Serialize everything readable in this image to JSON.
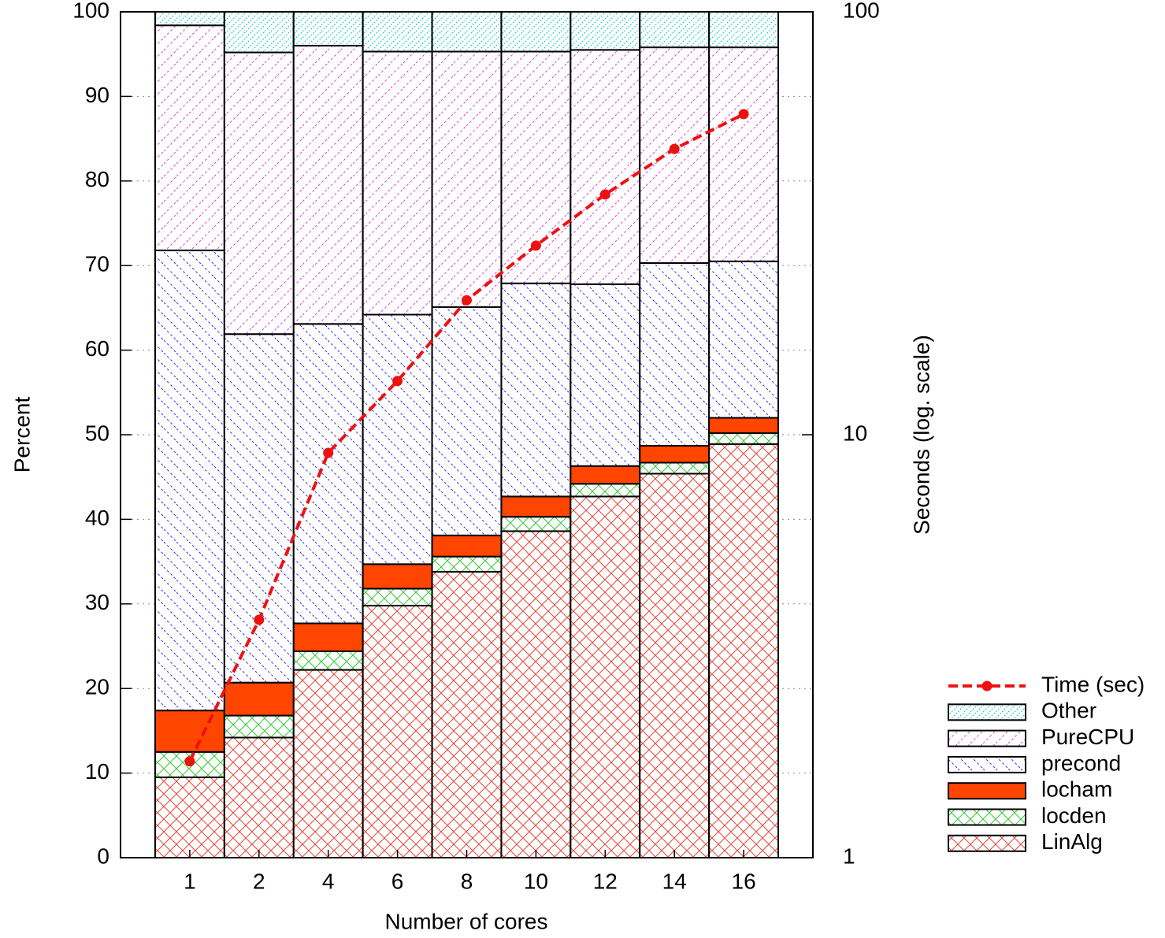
{
  "chart_data": {
    "type": "stacked-bar-line",
    "xlabel": "Number of cores",
    "ylabel": "Percent",
    "y2label": "Seconds (log. scale)",
    "categories": [
      "1",
      "2",
      "4",
      "6",
      "8",
      "10",
      "12",
      "14",
      "16"
    ],
    "ylim": [
      0,
      100
    ],
    "yticks": [
      0,
      10,
      20,
      30,
      40,
      50,
      60,
      70,
      80,
      90,
      100
    ],
    "y2lim": [
      1,
      100
    ],
    "y2ticks": [
      1,
      10,
      100
    ],
    "y2scale": "log",
    "grid": true,
    "legend": "lower right",
    "series": [
      {
        "name": "LinAlg",
        "color": "#e8463a",
        "pattern": "crosshatch",
        "values": [
          9.5,
          14.2,
          22.2,
          29.8,
          33.8,
          38.6,
          42.7,
          45.4,
          48.9
        ]
      },
      {
        "name": "locden",
        "color": "#33cc33",
        "pattern": "crosshatch",
        "values": [
          3.0,
          2.6,
          2.2,
          2.0,
          1.8,
          1.7,
          1.5,
          1.3,
          1.3
        ]
      },
      {
        "name": "locham",
        "color": "#ff4500",
        "pattern": "solid",
        "values": [
          4.9,
          3.9,
          3.3,
          2.9,
          2.5,
          2.4,
          2.1,
          2.0,
          1.8
        ]
      },
      {
        "name": "precond",
        "color": "#3333ff",
        "pattern": "backdiagonal",
        "values": [
          54.4,
          41.2,
          35.4,
          29.5,
          27.0,
          25.2,
          21.5,
          21.6,
          18.5
        ]
      },
      {
        "name": "PureCPU",
        "color": "#e040e0",
        "pattern": "diagonal",
        "values": [
          26.6,
          33.3,
          32.9,
          31.1,
          30.2,
          27.4,
          27.7,
          25.5,
          25.3
        ]
      },
      {
        "name": "Other",
        "color": "#00c8c8",
        "pattern": "dense",
        "values": [
          1.6,
          4.8,
          4.0,
          4.7,
          4.7,
          4.7,
          4.5,
          4.2,
          4.2
        ]
      },
      {
        "name": "Time (sec)",
        "color": "#ee1111",
        "axis": "y2",
        "line": "dashed",
        "values": [
          1.69,
          3.65,
          9.06,
          13.4,
          20.8,
          28.0,
          37.0,
          47.4,
          57.3
        ]
      }
    ]
  }
}
